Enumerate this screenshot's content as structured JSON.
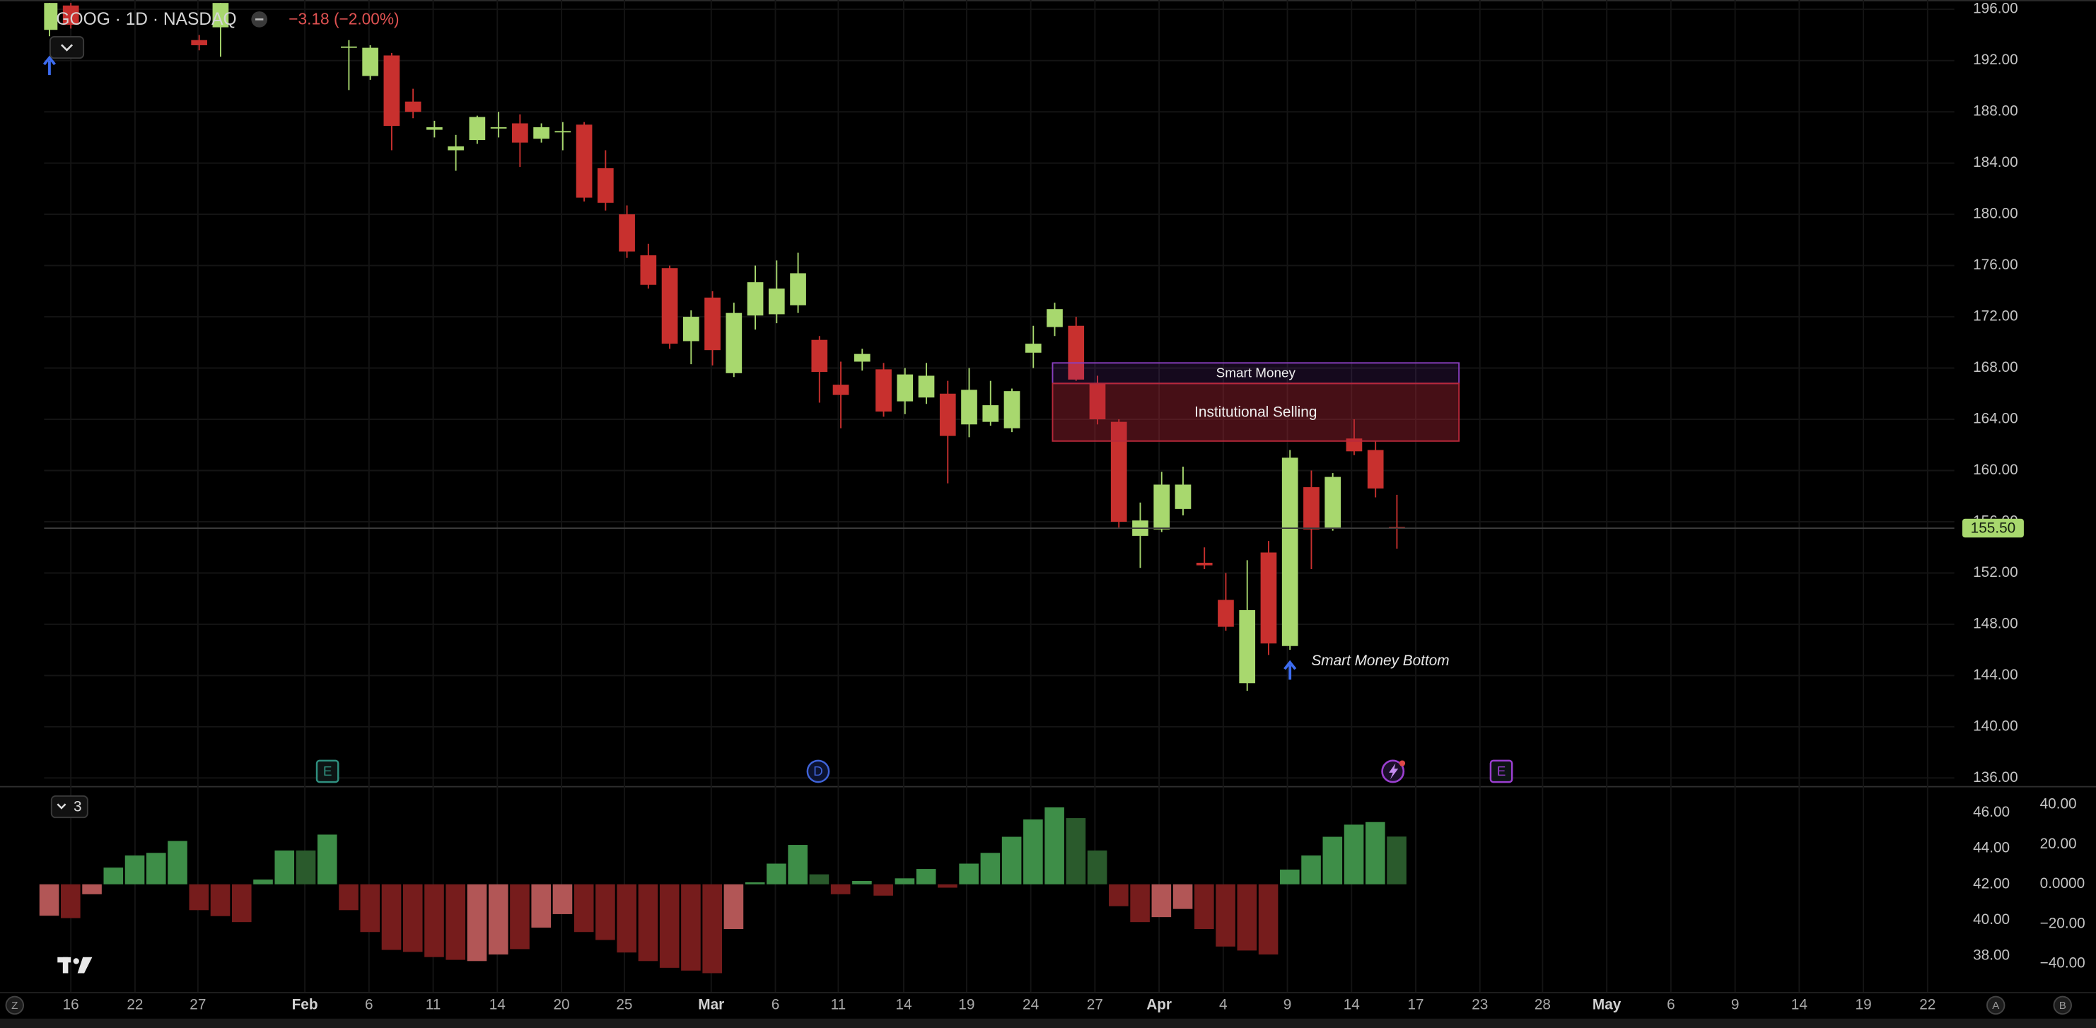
{
  "chart_data": [
    {
      "type": "candlestick",
      "title": "GOOG · 1D · NASDAQ",
      "change": "−3.18 (−2.00%)",
      "x": [
        0,
        1,
        7,
        8,
        14,
        15,
        16,
        17,
        18,
        19,
        20,
        21,
        22,
        23,
        24,
        25,
        26,
        27,
        28,
        29,
        30,
        31,
        32,
        33,
        34,
        35,
        36,
        37,
        38,
        39,
        40,
        41,
        42,
        43,
        44,
        45,
        46,
        47,
        48,
        49,
        50,
        51,
        52,
        53,
        54,
        55,
        56,
        57,
        58,
        59,
        60,
        61,
        62,
        63
      ],
      "open": [
        194.4,
        196.3,
        193.6,
        194.6,
        193.0,
        190.8,
        192.4,
        188.8,
        186.6,
        185.0,
        185.8,
        186.7,
        187.1,
        185.9,
        186.4,
        187.0,
        183.6,
        180.0,
        176.8,
        175.8,
        170.1,
        173.5,
        167.6,
        172.1,
        172.2,
        172.9,
        170.2,
        166.7,
        168.5,
        167.9,
        165.4,
        165.7,
        166.0,
        163.6,
        163.8,
        163.3,
        169.2,
        171.2,
        171.3,
        166.8,
        163.8,
        154.9,
        155.4,
        157.0,
        152.8,
        149.9,
        143.4,
        153.6,
        146.3,
        158.7,
        155.5,
        162.5,
        161.6,
        155.6
      ],
      "high": [
        196.5,
        196.5,
        194.0,
        196.5,
        193.6,
        193.2,
        192.6,
        189.8,
        187.3,
        186.2,
        187.7,
        188.0,
        187.8,
        187.1,
        187.2,
        187.2,
        185.0,
        180.7,
        177.7,
        176.0,
        172.5,
        174.0,
        173.1,
        176.0,
        176.4,
        177.0,
        170.5,
        168.5,
        169.5,
        168.4,
        168.0,
        168.4,
        167.0,
        168.0,
        167.0,
        166.4,
        171.3,
        173.1,
        172.0,
        167.4,
        164.0,
        157.5,
        159.9,
        160.3,
        154.0,
        152.0,
        153.0,
        154.5,
        161.6,
        160.0,
        159.8,
        164.0,
        162.3,
        158.1
      ],
      "low": [
        193.9,
        194.5,
        192.8,
        192.3,
        189.7,
        190.5,
        185.0,
        187.5,
        186.0,
        183.4,
        185.5,
        186.0,
        183.7,
        185.6,
        185.0,
        181.0,
        180.3,
        176.6,
        174.2,
        169.5,
        168.3,
        168.2,
        167.3,
        171.0,
        171.5,
        172.3,
        165.3,
        163.3,
        167.8,
        164.2,
        164.4,
        165.2,
        159.0,
        162.6,
        163.5,
        163.0,
        168.0,
        170.5,
        167.0,
        163.6,
        155.5,
        152.4,
        155.2,
        156.5,
        152.3,
        147.5,
        142.8,
        145.6,
        146.0,
        152.3,
        155.3,
        161.2,
        157.9,
        153.9
      ],
      "close": [
        196.5,
        194.8,
        193.2,
        196.5,
        193.1,
        193.0,
        186.9,
        188.0,
        186.8,
        185.3,
        187.6,
        186.8,
        185.6,
        186.8,
        186.5,
        181.3,
        180.9,
        177.1,
        174.5,
        169.9,
        172.0,
        169.4,
        172.3,
        174.7,
        174.2,
        175.4,
        167.7,
        165.9,
        169.1,
        164.6,
        167.5,
        167.4,
        162.7,
        166.3,
        165.1,
        166.2,
        169.9,
        172.6,
        167.1,
        164.0,
        156.0,
        156.1,
        158.9,
        158.9,
        152.6,
        147.8,
        149.1,
        146.5,
        161.0,
        155.4,
        159.5,
        161.5,
        158.6,
        155.5
      ],
      "up_color": "#a8d86e",
      "down_color": "#c8302e",
      "xlim": [
        -0.25,
        89.06
      ],
      "ylim": [
        135.37,
        196.73
      ],
      "xticks": [
        {
          "value": 1,
          "label": "16"
        },
        {
          "value": 4,
          "label": "22"
        },
        {
          "value": 6.94,
          "label": "27"
        },
        {
          "value": 11.94,
          "label": "Feb"
        },
        {
          "value": 14.94,
          "label": "6"
        },
        {
          "value": 17.94,
          "label": "11"
        },
        {
          "value": 20.94,
          "label": "14"
        },
        {
          "value": 23.94,
          "label": "20"
        },
        {
          "value": 26.88,
          "label": "25"
        },
        {
          "value": 30.94,
          "label": "Mar"
        },
        {
          "value": 33.94,
          "label": "6"
        },
        {
          "value": 36.88,
          "label": "11"
        },
        {
          "value": 39.94,
          "label": "14"
        },
        {
          "value": 42.88,
          "label": "19"
        },
        {
          "value": 45.88,
          "label": "24"
        },
        {
          "value": 48.88,
          "label": "27"
        },
        {
          "value": 51.88,
          "label": "Apr"
        },
        {
          "value": 54.88,
          "label": "4"
        },
        {
          "value": 57.88,
          "label": "9"
        },
        {
          "value": 60.88,
          "label": "14"
        },
        {
          "value": 63.88,
          "label": "17"
        },
        {
          "value": 66.88,
          "label": "23"
        },
        {
          "value": 69.81,
          "label": "28"
        },
        {
          "value": 72.81,
          "label": "May"
        },
        {
          "value": 75.81,
          "label": "6"
        },
        {
          "value": 78.81,
          "label": "9"
        },
        {
          "value": 81.81,
          "label": "14"
        },
        {
          "value": 84.81,
          "label": "19"
        },
        {
          "value": 87.81,
          "label": "22"
        }
      ],
      "yticks": [
        {
          "value": 196,
          "label": "196.00"
        },
        {
          "value": 192,
          "label": "192.00"
        },
        {
          "value": 188,
          "label": "188.00"
        },
        {
          "value": 184,
          "label": "184.00"
        },
        {
          "value": 180,
          "label": "180.00"
        },
        {
          "value": 176,
          "label": "176.00"
        },
        {
          "value": 172,
          "label": "172.00"
        },
        {
          "value": 168,
          "label": "168.00"
        },
        {
          "value": 164,
          "label": "164.00"
        },
        {
          "value": 160,
          "label": "160.00"
        },
        {
          "value": 156,
          "label": "156.00"
        },
        {
          "value": 152,
          "label": "152.00"
        },
        {
          "value": 148,
          "label": "148.00"
        },
        {
          "value": 144,
          "label": "144.00"
        },
        {
          "value": 140,
          "label": "140.00"
        },
        {
          "value": 136,
          "label": "136.00"
        }
      ],
      "grid": true,
      "last_price": {
        "value": 155.5,
        "label": "155.50"
      },
      "zones": [
        {
          "label": "Smart Money",
          "x": [
            46.9,
            65.9
          ],
          "y": [
            166.8,
            168.4
          ],
          "color": "#8a3fc0"
        },
        {
          "label": "Institutional Selling",
          "x": [
            46.9,
            65.9
          ],
          "y": [
            162.3,
            166.8
          ],
          "color": "#b8283a"
        }
      ],
      "annotations": [
        {
          "text": "Smart Money Bottom",
          "x": 59,
          "y": 145.1
        }
      ],
      "signals": [
        {
          "x": 0,
          "y": 191.6
        },
        {
          "x": 58,
          "y": 144.4
        }
      ],
      "events": [
        {
          "x": 13,
          "label": "E",
          "color": "#2f8f7f"
        },
        {
          "x": 35.94,
          "label": "D",
          "color": "#3f63d8"
        },
        {
          "x": 67.88,
          "label": "E",
          "color": "#9b3fd0"
        }
      ],
      "corner_labels": [
        "Z",
        "A",
        "B"
      ]
    },
    {
      "type": "bar",
      "badge": "3",
      "x": [
        0,
        1,
        2,
        3,
        4,
        5,
        6,
        7,
        8,
        9,
        10,
        11,
        12,
        13,
        14,
        15,
        16,
        17,
        18,
        19,
        20,
        21,
        22,
        23,
        24,
        25,
        26,
        27,
        28,
        29,
        30,
        31,
        32,
        33,
        34,
        35,
        36,
        37,
        38,
        39,
        40,
        41,
        42,
        43,
        44,
        45,
        46,
        47,
        48,
        49,
        50,
        51,
        52,
        53,
        54,
        55,
        56,
        57,
        58,
        59,
        60,
        61,
        62,
        63
      ],
      "xlim": [
        -0.25,
        89.06
      ],
      "series": [
        {
          "axis": "y2",
          "values": [
            -15.8,
            -17,
            -5,
            8.4,
            14.5,
            15.8,
            21.8,
            -13,
            -16,
            -19,
            2.4,
            17,
            17,
            25,
            -13,
            -24,
            -33,
            -34,
            -36.6,
            -38,
            -38.6,
            -35.3,
            -32.6,
            -21.8,
            -15,
            -24,
            -28,
            -34.3,
            -38.6,
            -42,
            -43.4,
            -44.7,
            -22.5,
            1,
            10.4,
            19.8,
            5,
            -5,
            1.7,
            -5.7,
            3,
            7.7,
            -1.7,
            10.4,
            15.8,
            23.9,
            32.6,
            38.7,
            33.3,
            17,
            -11,
            -19,
            -16.5,
            -12.4,
            -22.5,
            -31.3,
            -33.3,
            -35.3,
            7.4,
            14.5,
            23.9,
            30,
            31.3,
            24
          ],
          "colors": [
            "#b25656",
            "#761c1c",
            "#b25656",
            "#3e8e48",
            "#3e8e48",
            "#3e8e48",
            "#3e8e48",
            "#761c1c",
            "#761c1c",
            "#761c1c",
            "#3e8e48",
            "#3e8e48",
            "#2a5a2c",
            "#3e8e48",
            "#761c1c",
            "#761c1c",
            "#761c1c",
            "#761c1c",
            "#761c1c",
            "#761c1c",
            "#b25656",
            "#b25656",
            "#761c1c",
            "#b25656",
            "#b25656",
            "#761c1c",
            "#761c1c",
            "#761c1c",
            "#761c1c",
            "#761c1c",
            "#761c1c",
            "#761c1c",
            "#b25656",
            "#3e8e48",
            "#3e8e48",
            "#3e8e48",
            "#2a5a2c",
            "#761c1c",
            "#3e8e48",
            "#761c1c",
            "#3e8e48",
            "#3e8e48",
            "#761c1c",
            "#3e8e48",
            "#3e8e48",
            "#3e8e48",
            "#3e8e48",
            "#3e8e48",
            "#2a5a2c",
            "#2a5a2c",
            "#761c1c",
            "#761c1c",
            "#b25656",
            "#b25656",
            "#761c1c",
            "#761c1c",
            "#761c1c",
            "#761c1c",
            "#3e8e48",
            "#3e8e48",
            "#3e8e48",
            "#3e8e48",
            "#3e8e48",
            "#2a5a2c"
          ]
        }
      ],
      "ylim": [
        35.98,
        47.35
      ],
      "yticks": [
        {
          "value": 46,
          "label": "46.00"
        },
        {
          "value": 44,
          "label": "44.00"
        },
        {
          "value": 42,
          "label": "42.00"
        },
        {
          "value": 40,
          "label": "40.00"
        },
        {
          "value": 38,
          "label": "38.00"
        }
      ],
      "y2lim": [
        -54.12,
        48.07
      ],
      "y2ticks": [
        {
          "value": 40,
          "label": "40.00"
        },
        {
          "value": 20,
          "label": "20.00"
        },
        {
          "value": 0,
          "label": "0.0000"
        },
        {
          "value": -20,
          "label": "−20.00"
        },
        {
          "value": -40,
          "label": "−40.00"
        }
      ]
    }
  ]
}
